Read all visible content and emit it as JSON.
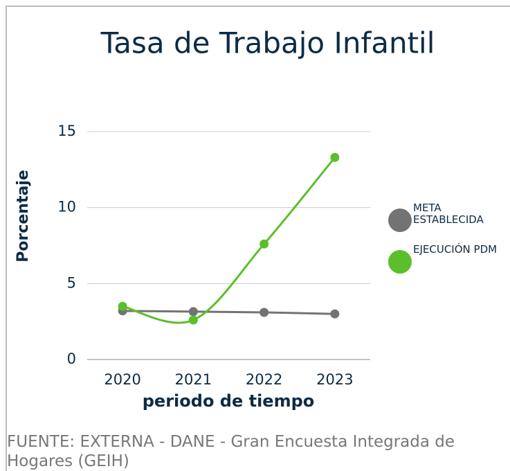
{
  "chart_data": {
    "type": "line",
    "title": "Tasa de Trabajo Infantil",
    "x_label": "periodo de tiempo",
    "y_label": "Porcentaje",
    "categories": [
      "2020",
      "2021",
      "2022",
      "2023"
    ],
    "series": [
      {
        "name": "META ESTABLECIDA",
        "color": "#737373",
        "values": [
          3.2,
          3.15,
          3.1,
          3.0
        ]
      },
      {
        "name": "EJECUCIÓN PDM",
        "color": "#5abf2a",
        "values": [
          3.5,
          2.6,
          7.6,
          13.3
        ]
      }
    ],
    "ylim": [
      0,
      15
    ],
    "yticks": [
      0,
      5,
      10,
      15
    ],
    "grid": true,
    "legend": "right",
    "source": "FUENTE: EXTERNA - DANE - Gran Encuesta Integrada de Hogares (GEIH)"
  }
}
